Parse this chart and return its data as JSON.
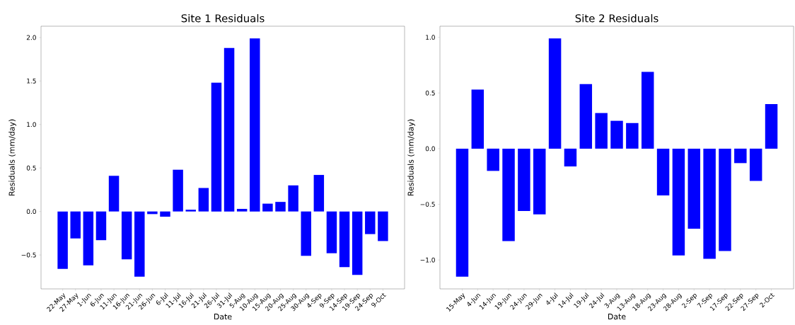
{
  "chart_data": [
    {
      "type": "bar",
      "title": "Site 1 Residuals",
      "xlabel": "Date",
      "ylabel": "Residuals (mm/day)",
      "color": "#0000ff",
      "categories": [
        "22-May",
        "27-May",
        "1-Jun",
        "6-Jun",
        "11-Jun",
        "16-Jun",
        "21-Jun",
        "26-Jun",
        "6-Jul",
        "11-Jul",
        "16-Jul",
        "21-Jul",
        "26-Jul",
        "31-Jul",
        "5-Aug",
        "10-Aug",
        "15-Aug",
        "20-Aug",
        "25-Aug",
        "30-Aug",
        "4-Sep",
        "9-Sep",
        "14-Sep",
        "19-Sep",
        "24-Sep",
        "9-Oct"
      ],
      "values": [
        -0.66,
        -0.31,
        -0.62,
        -0.33,
        0.41,
        -0.55,
        -0.75,
        -0.03,
        -0.06,
        0.48,
        0.02,
        0.27,
        1.48,
        1.88,
        0.03,
        1.99,
        0.09,
        0.11,
        0.3,
        -0.51,
        0.42,
        -0.48,
        -0.64,
        -0.73,
        -0.26,
        -0.34
      ],
      "ylim": [
        -0.89,
        2.13
      ],
      "yticks": [
        {
          "value": -0.5,
          "label": "−0.5"
        },
        {
          "value": 0,
          "label": "0.0"
        },
        {
          "value": 0.5,
          "label": "0.5"
        },
        {
          "value": 1,
          "label": "1.0"
        },
        {
          "value": 1.5,
          "label": "1.5"
        },
        {
          "value": 2,
          "label": "2.0"
        }
      ]
    },
    {
      "type": "bar",
      "title": "Site 2 Residuals",
      "xlabel": "Date",
      "ylabel": "Residuals (mm/day)",
      "color": "#0000ff",
      "categories": [
        "15-May",
        "4-Jun",
        "14-Jun",
        "19-Jun",
        "24-Jun",
        "29-Jun",
        "4-Jul",
        "14-Jul",
        "19-Jul",
        "24-Jul",
        "3-Aug",
        "13-Aug",
        "18-Aug",
        "23-Aug",
        "28-Aug",
        "2-Sep",
        "7-Sep",
        "17-Sep",
        "22-Sep",
        "27-Sep",
        "2-Oct"
      ],
      "values": [
        -1.15,
        0.53,
        -0.2,
        -0.83,
        -0.56,
        -0.59,
        0.99,
        -0.16,
        0.58,
        0.32,
        0.25,
        0.23,
        0.69,
        -0.42,
        -0.96,
        -0.72,
        -0.99,
        -0.92,
        -0.13,
        -0.29,
        0.4
      ],
      "ylim": [
        -1.26,
        1.1
      ],
      "yticks": [
        {
          "value": -1.0,
          "label": "−1.0"
        },
        {
          "value": -0.5,
          "label": "−0.5"
        },
        {
          "value": 0,
          "label": "0.0"
        },
        {
          "value": 0.5,
          "label": "0.5"
        },
        {
          "value": 1,
          "label": "1.0"
        }
      ]
    }
  ]
}
